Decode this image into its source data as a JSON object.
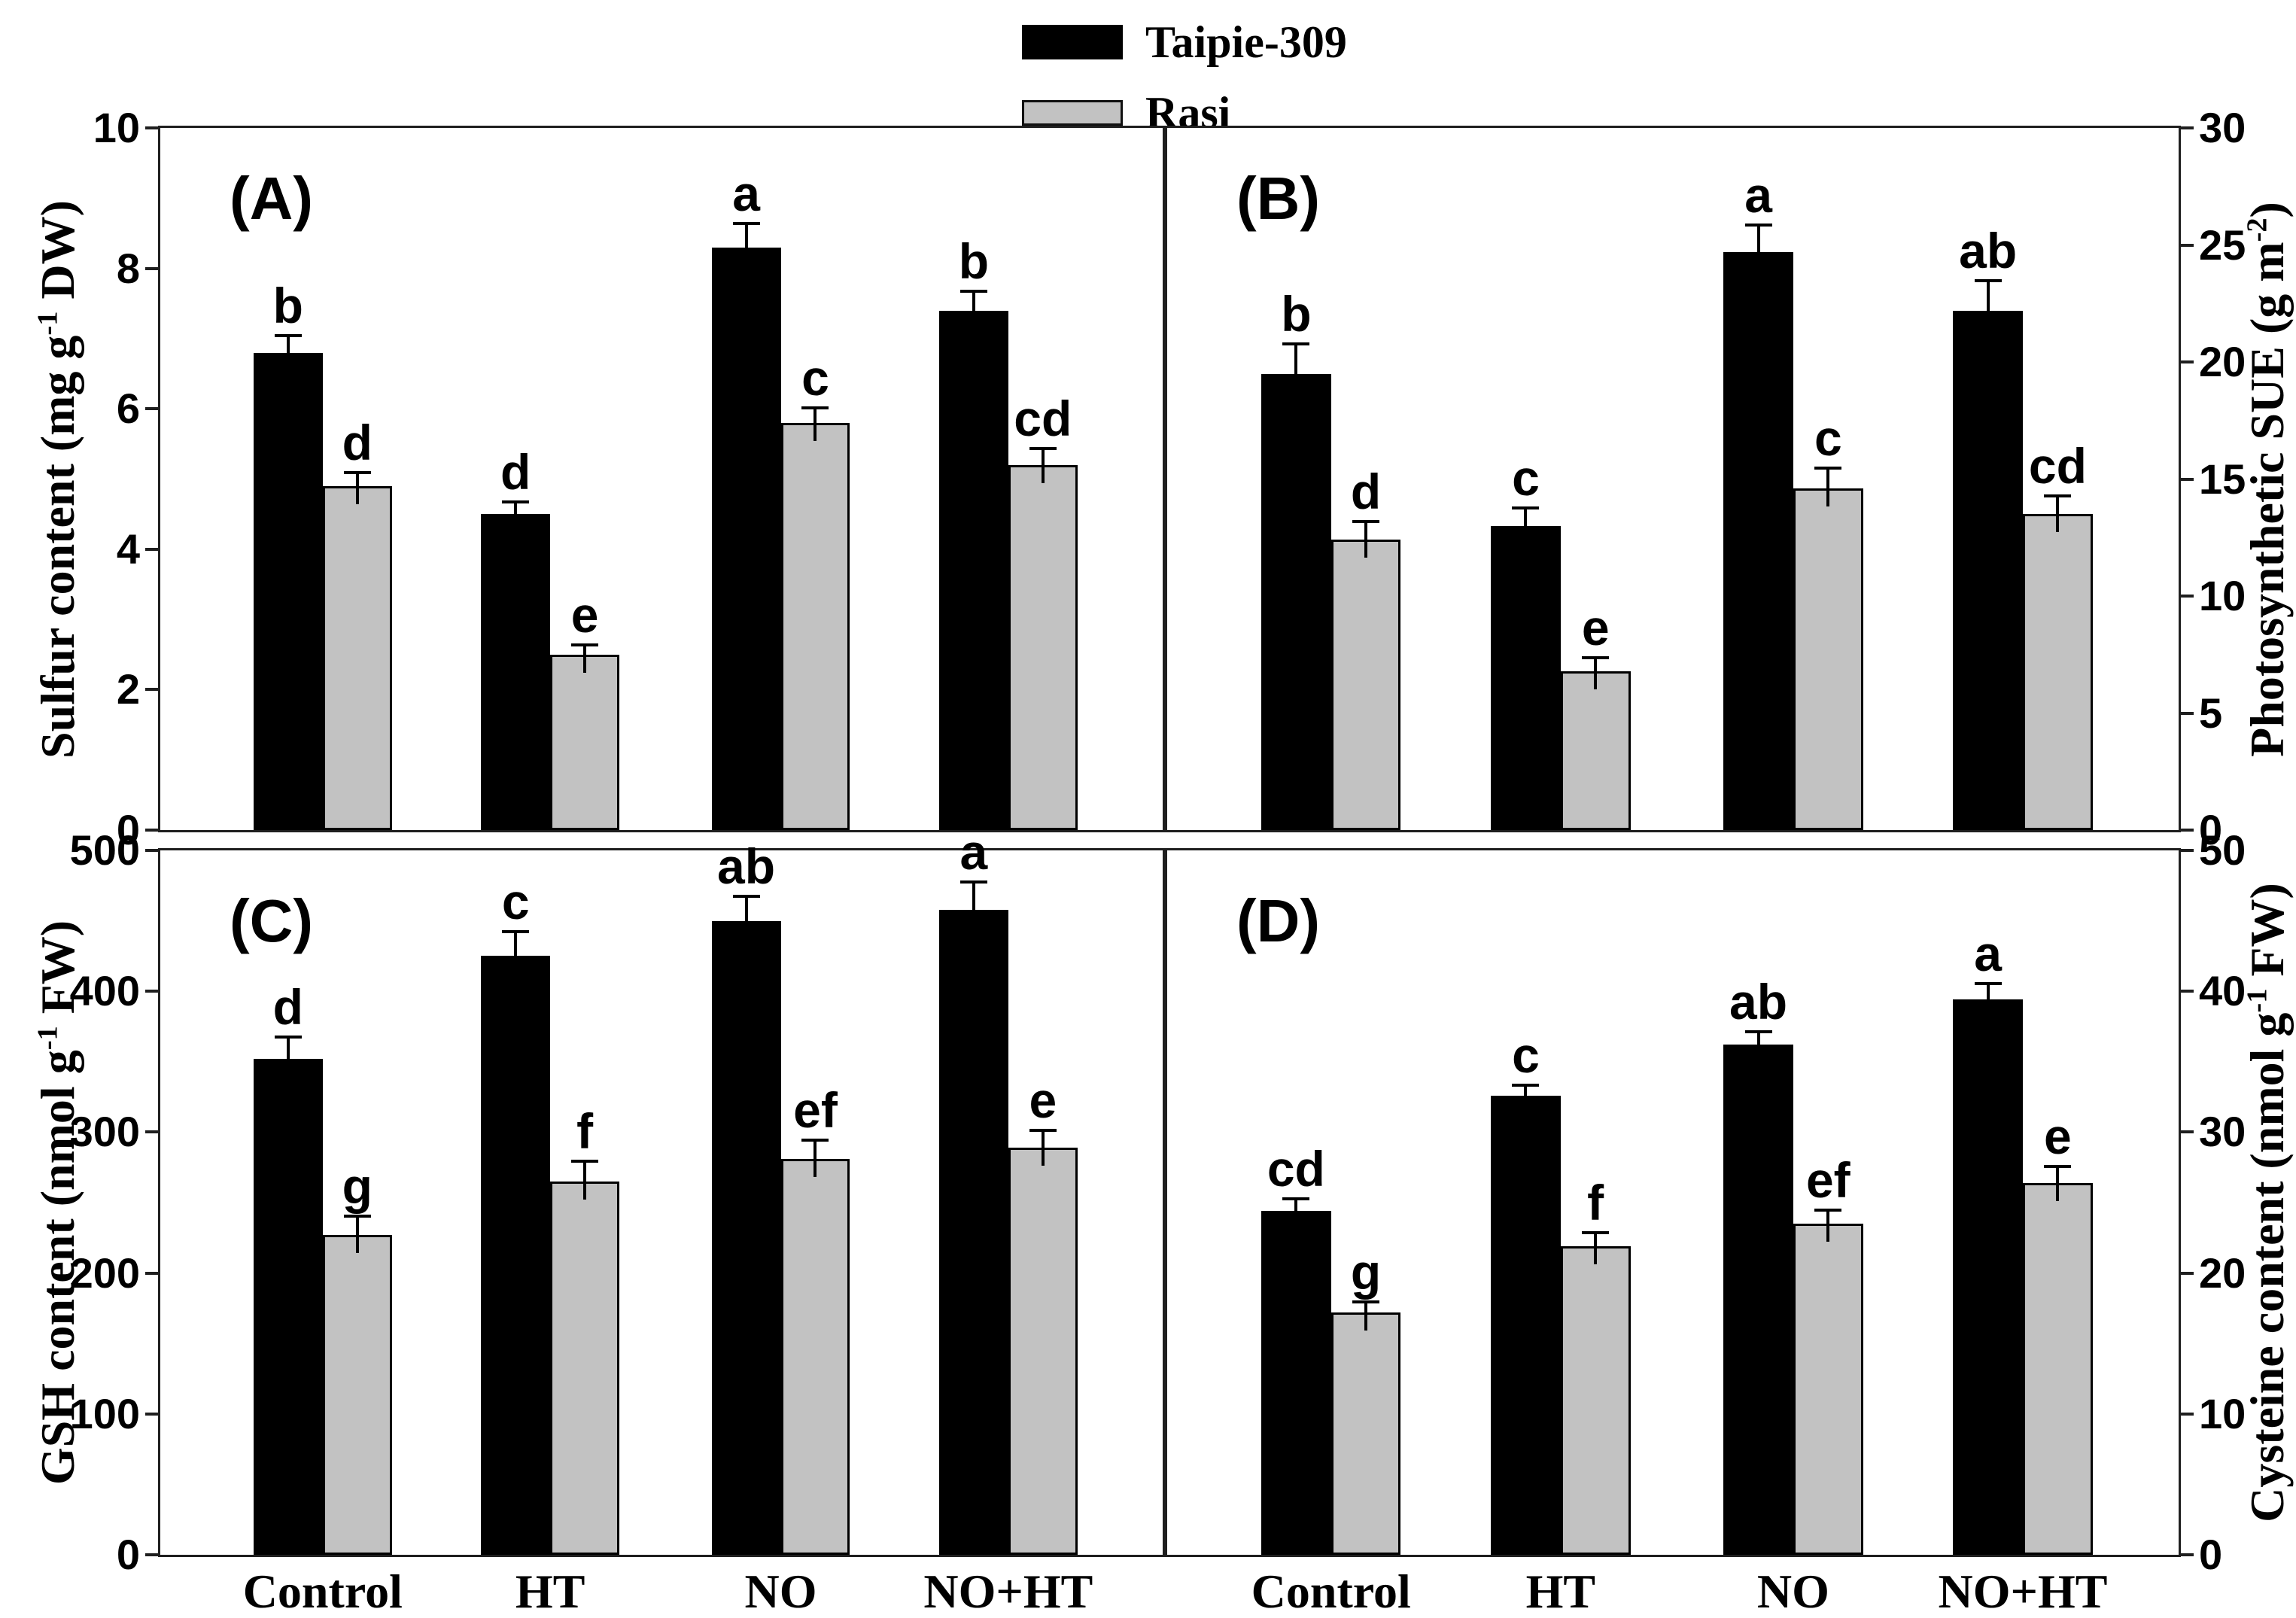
{
  "legend": {
    "items": [
      {
        "label": "Taipie-309",
        "color": "#000000"
      },
      {
        "label": "Rasi",
        "color": "#c2c2c2"
      }
    ]
  },
  "x_categories": [
    "Control",
    "HT",
    "NO",
    "NO+HT"
  ],
  "series_names": [
    "Taipie-309",
    "Rasi"
  ],
  "colors": {
    "taipie_309": "#000000",
    "rasi": "#c2c2c2",
    "axis": "#1f1f1f"
  },
  "chart_data": [
    {
      "type": "bar",
      "panel_label": "(A)",
      "axis_side": "left",
      "ylabel_parts": [
        [
          "Sulfur content (mg g",
          false
        ],
        [
          "-1",
          true
        ],
        [
          " DW)",
          false
        ]
      ],
      "ylim": [
        0,
        10
      ],
      "yticks": [
        0,
        2,
        4,
        6,
        8,
        10
      ],
      "categories": [
        "Control",
        "HT",
        "NO",
        "NO+HT"
      ],
      "series": [
        {
          "name": "Taipie-309",
          "color": "#000000",
          "values": [
            6.8,
            4.5,
            8.3,
            7.4
          ],
          "errors": [
            0.25,
            0.18,
            0.35,
            0.28
          ],
          "letters": [
            "b",
            "d",
            "a",
            "b"
          ]
        },
        {
          "name": "Rasi",
          "color": "#c2c2c2",
          "values": [
            4.9,
            2.5,
            5.8,
            5.2
          ],
          "errors": [
            0.2,
            0.15,
            0.22,
            0.25
          ],
          "letters": [
            "d",
            "e",
            "c",
            "cd"
          ]
        }
      ]
    },
    {
      "type": "bar",
      "panel_label": "(B)",
      "axis_side": "right",
      "ylabel_parts": [
        [
          "Photosynthetic SUE (g m",
          false
        ],
        [
          "-2",
          true
        ],
        [
          ")",
          false
        ]
      ],
      "ylim": [
        0,
        30
      ],
      "yticks": [
        0,
        5,
        10,
        15,
        20,
        25,
        30
      ],
      "categories": [
        "Control",
        "HT",
        "NO",
        "NO+HT"
      ],
      "series": [
        {
          "name": "Taipie-309",
          "color": "#000000",
          "values": [
            19.5,
            13.0,
            24.7,
            22.2
          ],
          "errors": [
            1.3,
            0.8,
            1.2,
            1.3
          ],
          "letters": [
            "b",
            "c",
            "a",
            "ab"
          ]
        },
        {
          "name": "Rasi",
          "color": "#c2c2c2",
          "values": [
            12.4,
            6.8,
            14.6,
            13.5
          ],
          "errors": [
            0.8,
            0.6,
            0.9,
            0.8
          ],
          "letters": [
            "d",
            "e",
            "c",
            "cd"
          ]
        }
      ]
    },
    {
      "type": "bar",
      "panel_label": "(C)",
      "axis_side": "left",
      "ylabel_parts": [
        [
          "GSH content (nmol g",
          false
        ],
        [
          "-1",
          true
        ],
        [
          " FW)",
          false
        ]
      ],
      "ylim": [
        0,
        500
      ],
      "yticks": [
        0,
        100,
        200,
        300,
        400,
        500
      ],
      "categories": [
        "Control",
        "HT",
        "NO",
        "NO+HT"
      ],
      "series": [
        {
          "name": "Taipie-309",
          "color": "#000000",
          "values": [
            352,
            425,
            450,
            458
          ],
          "errors": [
            16,
            18,
            18,
            20
          ],
          "letters": [
            "d",
            "c",
            "ab",
            "a"
          ]
        },
        {
          "name": "Rasi",
          "color": "#c2c2c2",
          "values": [
            227,
            265,
            281,
            289
          ],
          "errors": [
            14,
            15,
            14,
            13
          ],
          "letters": [
            "g",
            "f",
            "ef",
            "e"
          ]
        }
      ]
    },
    {
      "type": "bar",
      "panel_label": "(D)",
      "axis_side": "right",
      "ylabel_parts": [
        [
          "Cysteine content (nmol g",
          false
        ],
        [
          "-1",
          true
        ],
        [
          " FW)",
          false
        ]
      ],
      "ylim": [
        0,
        50
      ],
      "yticks": [
        0,
        10,
        20,
        30,
        40,
        50
      ],
      "categories": [
        "Control",
        "HT",
        "NO",
        "NO+HT"
      ],
      "series": [
        {
          "name": "Taipie-309",
          "color": "#000000",
          "values": [
            24.4,
            32.6,
            36.2,
            39.4
          ],
          "errors": [
            0.9,
            0.8,
            1.0,
            1.2
          ],
          "letters": [
            "cd",
            "c",
            "ab",
            "a"
          ]
        },
        {
          "name": "Rasi",
          "color": "#c2c2c2",
          "values": [
            17.2,
            21.9,
            23.5,
            26.4
          ],
          "errors": [
            0.8,
            1.0,
            1.0,
            1.2
          ],
          "letters": [
            "g",
            "f",
            "ef",
            "e"
          ]
        }
      ]
    }
  ]
}
